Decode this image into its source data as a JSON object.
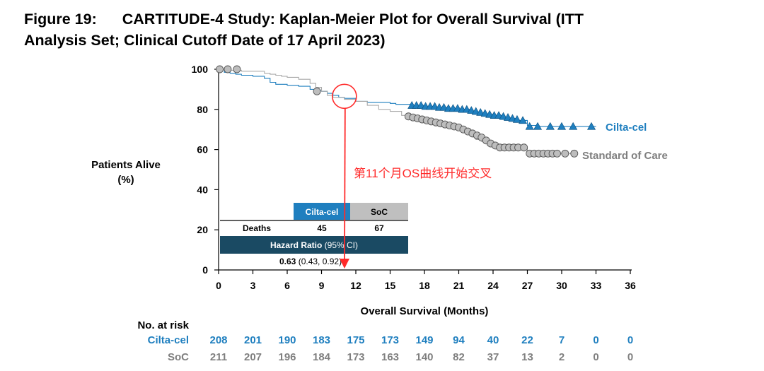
{
  "figure": {
    "label": "Figure 19:",
    "title_line1": "CARTITUDE-4 Study: Kaplan-Meier Plot for Overall Survival (ITT",
    "title_line2": "Analysis Set; Clinical Cutoff Date of 17 April 2023)"
  },
  "chart_data": {
    "type": "line",
    "ylabel_line1": "Patients Alive",
    "ylabel_line2": "(%)",
    "xlabel": "Overall Survival (Months)",
    "xlim": [
      0,
      36
    ],
    "ylim": [
      0,
      100
    ],
    "x_ticks": [
      0,
      3,
      6,
      9,
      12,
      15,
      18,
      21,
      24,
      27,
      30,
      33,
      36
    ],
    "y_ticks": [
      0,
      20,
      40,
      60,
      80,
      100
    ],
    "grid": false,
    "series": [
      {
        "name": "Cilta-cel",
        "color": "#1f7fbf",
        "marker": "triangle",
        "x": [
          0,
          0.5,
          1.0,
          1.5,
          2.0,
          3.0,
          4.0,
          4.5,
          5.0,
          6.0,
          7.0,
          8.0,
          8.5,
          9.0,
          9.5,
          10.0,
          10.5,
          11.0,
          12.0,
          13.0,
          14.0,
          15.0,
          15.5,
          16.0,
          17.0,
          18.0,
          19.0,
          20.0,
          21.0,
          22.0,
          23.0,
          24.0,
          25.0,
          26.0,
          27.0,
          28.0,
          29.0,
          30.0,
          31.0,
          32.0,
          33.0
        ],
        "y": [
          100,
          98.5,
          98,
          97.5,
          97,
          96.5,
          95.5,
          93.5,
          92.5,
          92,
          91.5,
          90,
          89.5,
          89,
          88,
          87,
          86,
          85.5,
          84,
          83.5,
          83.5,
          83,
          82.5,
          82.5,
          82,
          81.5,
          81,
          80.5,
          80,
          78.5,
          77.5,
          77,
          75.5,
          74.5,
          72,
          71.5,
          71.5,
          71.5,
          71.5,
          71.5,
          71.5
        ],
        "censored_x": [
          16.9,
          17.3,
          17.7,
          18.1,
          18.5,
          18.9,
          19.3,
          19.7,
          20.1,
          20.5,
          20.9,
          21.3,
          21.7,
          22.1,
          22.5,
          22.9,
          23.3,
          23.7,
          24.1,
          24.5,
          24.9,
          25.3,
          25.7,
          26.1,
          26.6,
          27.2,
          27.9,
          29.0,
          30.0,
          31.0,
          32.6
        ],
        "censored_y": [
          82,
          82,
          82,
          81.5,
          81.5,
          81.5,
          81,
          81,
          80.5,
          80.5,
          80.5,
          80,
          80,
          79.5,
          79,
          78.5,
          78,
          77.5,
          77,
          77,
          76.5,
          76,
          75.5,
          75,
          74.5,
          71.5,
          71.5,
          71.5,
          71.5,
          71.5,
          71.5
        ]
      },
      {
        "name": "Standard of Care",
        "color": "#7f7f7f",
        "marker": "circle",
        "x": [
          0,
          1.0,
          2.0,
          3.0,
          4.0,
          4.5,
          5.0,
          5.5,
          6.0,
          7.0,
          8.0,
          8.5,
          9.0,
          9.5,
          10.0,
          11.0,
          12.0,
          13.0,
          14.0,
          15.0,
          16.0,
          17.0,
          18.0,
          19.0,
          20.0,
          21.0,
          21.5,
          22.0,
          22.5,
          23.0,
          23.5,
          24.0,
          25.0,
          26.0,
          26.5,
          27.0,
          28.0,
          29.0,
          30.0,
          31.0
        ],
        "y": [
          100,
          99.5,
          99,
          99,
          98,
          97.5,
          97,
          96.5,
          96,
          95,
          93,
          91,
          89,
          87,
          86,
          85,
          84,
          82,
          80,
          79,
          77,
          75,
          74,
          73,
          72,
          71,
          69,
          67,
          65,
          64,
          62,
          61,
          61,
          61,
          61,
          58,
          58,
          58,
          58,
          58
        ],
        "censored_x": [
          0.1,
          0.8,
          1.6,
          8.6,
          16.6,
          17.0,
          17.4,
          17.8,
          18.2,
          18.6,
          19.0,
          19.4,
          19.8,
          20.2,
          20.6,
          21.0,
          21.4,
          21.8,
          22.2,
          22.6,
          23.0,
          23.4,
          23.8,
          24.2,
          24.6,
          25.0,
          25.4,
          25.8,
          26.2,
          26.7,
          27.2,
          27.6,
          28.0,
          28.4,
          28.8,
          29.2,
          29.6,
          30.3,
          31.1
        ],
        "censored_y": [
          100,
          100,
          100,
          89,
          76.5,
          76,
          75.5,
          75,
          74.5,
          74,
          73.5,
          73,
          72.5,
          72,
          71.5,
          71,
          70,
          69,
          68,
          67,
          66,
          64.5,
          63,
          62,
          61,
          61,
          61,
          61,
          61,
          61,
          58,
          58,
          58,
          58,
          58,
          58,
          58,
          58,
          58
        ]
      }
    ],
    "series_labels": [
      "Cilta-cel",
      "Standard of Care"
    ],
    "annotation": {
      "text": "第11个月OS曲线开始交叉",
      "x": 11,
      "y": 86.5,
      "color": "#ff2a2a"
    },
    "hr_table": {
      "col1_header": "Cilta-cel",
      "col2_header": "SoC",
      "row_label": "Deaths",
      "col1_value": "45",
      "col2_value": "67",
      "hr_label": "Hazard Ratio",
      "hr_ci_label": " (95% CI)",
      "hr_value": "0.63",
      "hr_ci_value": " (0.43, 0.92)"
    },
    "risk_table": {
      "title": "No. at risk",
      "rows": [
        {
          "label": "Cilta-cel",
          "color": "#1f7fbf",
          "values": [
            "208",
            "201",
            "190",
            "183",
            "175",
            "173",
            "149",
            "94",
            "40",
            "22",
            "7",
            "0",
            "0"
          ]
        },
        {
          "label": "SoC",
          "color": "#7f7f7f",
          "values": [
            "211",
            "207",
            "196",
            "184",
            "173",
            "163",
            "140",
            "82",
            "37",
            "13",
            "2",
            "0",
            "0"
          ]
        }
      ]
    }
  }
}
